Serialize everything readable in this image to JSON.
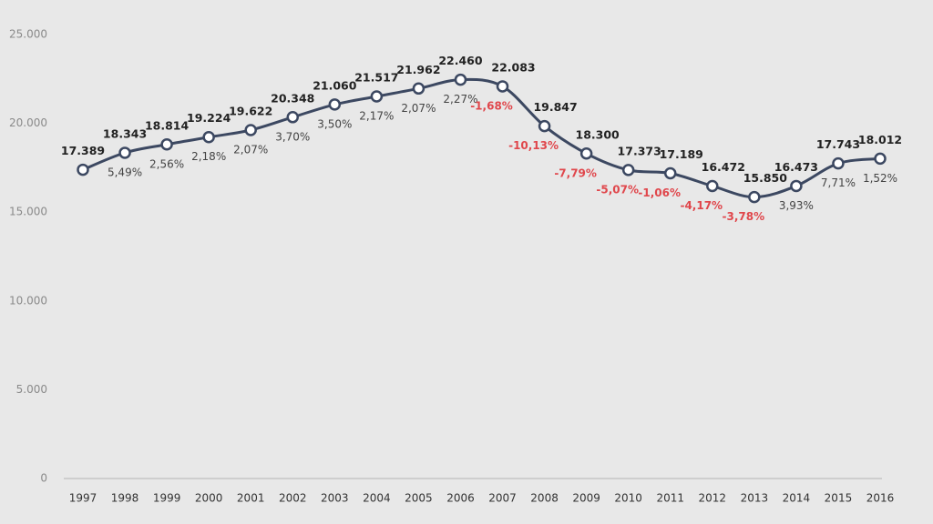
{
  "chart_data": {
    "type": "line",
    "categories": [
      "1997",
      "1998",
      "1999",
      "2000",
      "2001",
      "2002",
      "2003",
      "2004",
      "2005",
      "2006",
      "2007",
      "2008",
      "2009",
      "2010",
      "2011",
      "2012",
      "2013",
      "2014",
      "2015",
      "2016"
    ],
    "series": [
      {
        "color": "#3c4861",
        "values": [
          17389,
          18343,
          18814,
          19224,
          19622,
          20348,
          21060,
          21517,
          21962,
          22460,
          22083,
          19847,
          18300,
          17373,
          17189,
          16472,
          15850,
          16473,
          17743,
          18012
        ],
        "value_labels": [
          "17.389",
          "18.343",
          "18.814",
          "19.224",
          "19.622",
          "20.348",
          "21.060",
          "21.517",
          "21.962",
          "22.460",
          "22.083",
          "19.847",
          "18.300",
          "17.373",
          "17.189",
          "16.472",
          "15.850",
          "16.473",
          "17.743",
          "18.012"
        ],
        "change_values": [
          null,
          5.49,
          2.56,
          2.18,
          2.07,
          3.7,
          3.5,
          2.17,
          2.07,
          2.27,
          -1.68,
          -10.13,
          -7.79,
          -5.07,
          -1.06,
          -4.17,
          -3.78,
          3.93,
          7.71,
          1.52
        ],
        "change_labels": [
          null,
          "5,49%",
          "2,56%",
          "2,18%",
          "2,07%",
          "3,70%",
          "3,50%",
          "2,17%",
          "2,07%",
          "2,27%",
          "-1,68%",
          "-10,13%",
          "-7,79%",
          "-5,07%",
          "-1,06%",
          "-4,17%",
          "-3,78%",
          "3,93%",
          "7,71%",
          "1,52%"
        ]
      }
    ],
    "ylim": [
      0,
      25000
    ],
    "yticks": [
      0,
      {
        "value": 5000,
        "label": "5.000"
      },
      {
        "value": 10000,
        "label": "10.000"
      },
      {
        "value": 15000,
        "label": "15.000"
      },
      {
        "value": 20000,
        "label": "20.000"
      },
      {
        "value": 25000,
        "label": "25.000"
      }
    ],
    "negative_color": "#e0474c"
  }
}
